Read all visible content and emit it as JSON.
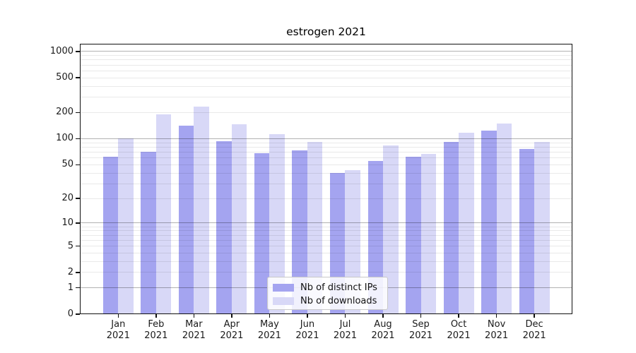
{
  "title": "estrogen 2021",
  "colors": {
    "distinct_ips": "#a4a4f0",
    "downloads": "#d8d8f7",
    "grid_major": "#b0b0b0",
    "grid_minor": "#e8e8e8",
    "spine": "#111111",
    "background": "#ffffff"
  },
  "chart_data": {
    "type": "bar",
    "title": "estrogen 2021",
    "categories": [
      "Jan 2021",
      "Feb 2021",
      "Mar 2021",
      "Apr 2021",
      "May 2021",
      "Jun 2021",
      "Jul 2021",
      "Aug 2021",
      "Sep 2021",
      "Oct 2021",
      "Nov 2021",
      "Dec 2021"
    ],
    "x_tick_line1": [
      "Jan",
      "Feb",
      "Mar",
      "Apr",
      "May",
      "Jun",
      "Jul",
      "Aug",
      "Sep",
      "Oct",
      "Nov",
      "Dec"
    ],
    "x_tick_line2": [
      "2021",
      "2021",
      "2021",
      "2021",
      "2021",
      "2021",
      "2021",
      "2021",
      "2021",
      "2021",
      "2021",
      "2021"
    ],
    "series": [
      {
        "name": "Nb of distinct IPs",
        "color": "#a4a4f0",
        "values": [
          62,
          71,
          140,
          94,
          68,
          73,
          40,
          55,
          62,
          92,
          124,
          76
        ]
      },
      {
        "name": "Nb of downloads",
        "color": "#d8d8f7",
        "values": [
          100,
          190,
          234,
          147,
          113,
          92,
          43,
          83,
          67,
          117,
          149,
          91
        ]
      }
    ],
    "yscale": "log(1+v)",
    "y_tick_values": [
      0,
      1,
      2,
      5,
      10,
      20,
      50,
      100,
      200,
      500,
      1000
    ],
    "y_tick_labels": [
      "0",
      "1",
      "2",
      "5",
      "10",
      "20",
      "50",
      "100",
      "200",
      "500",
      "1000"
    ],
    "ylim": [
      0,
      1230
    ],
    "grid": "on",
    "legend_position": "lower center",
    "legend_entries": [
      "Nb of distinct IPs",
      "Nb of downloads"
    ]
  }
}
